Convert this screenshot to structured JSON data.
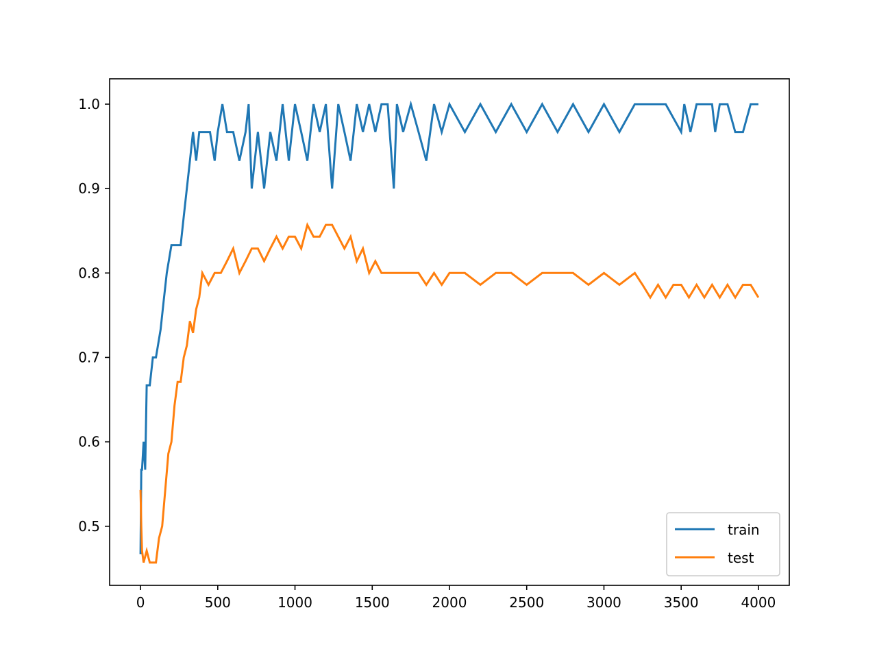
{
  "chart_data": {
    "type": "line",
    "title": "",
    "xlabel": "",
    "ylabel": "",
    "xlim": [
      -200,
      4200
    ],
    "ylim": [
      0.43,
      1.03
    ],
    "x_ticks": [
      0,
      500,
      1000,
      1500,
      2000,
      2500,
      3000,
      3500,
      4000
    ],
    "y_ticks": [
      0.5,
      0.6,
      0.7,
      0.8,
      0.9,
      1.0
    ],
    "x_tick_labels": [
      "0",
      "500",
      "1000",
      "1500",
      "2000",
      "2500",
      "3000",
      "3500",
      "4000"
    ],
    "y_tick_labels": [
      "0.5",
      "0.6",
      "0.7",
      "0.8",
      "0.9",
      "1.0"
    ],
    "grid": false,
    "legend_position": "lower-right",
    "series": [
      {
        "name": "train",
        "color": "#1f77b4",
        "x": [
          0,
          5,
          10,
          20,
          30,
          40,
          60,
          80,
          100,
          130,
          150,
          170,
          200,
          230,
          260,
          280,
          300,
          320,
          340,
          360,
          380,
          400,
          420,
          450,
          480,
          500,
          530,
          560,
          600,
          640,
          680,
          700,
          720,
          760,
          800,
          840,
          880,
          920,
          960,
          1000,
          1040,
          1080,
          1120,
          1160,
          1200,
          1240,
          1280,
          1320,
          1360,
          1400,
          1440,
          1480,
          1520,
          1560,
          1600,
          1640,
          1660,
          1700,
          1750,
          1800,
          1850,
          1900,
          1950,
          2000,
          2100,
          2200,
          2300,
          2400,
          2500,
          2600,
          2700,
          2800,
          2900,
          3000,
          3100,
          3200,
          3300,
          3400,
          3500,
          3520,
          3560,
          3600,
          3700,
          3720,
          3750,
          3800,
          3850,
          3900,
          3950,
          4000
        ],
        "values": [
          0.467,
          0.567,
          0.567,
          0.6,
          0.567,
          0.667,
          0.667,
          0.7,
          0.7,
          0.733,
          0.767,
          0.8,
          0.833,
          0.833,
          0.833,
          0.867,
          0.9,
          0.933,
          0.967,
          0.933,
          0.967,
          0.967,
          0.967,
          0.967,
          0.933,
          0.967,
          1.0,
          0.967,
          0.967,
          0.933,
          0.967,
          1.0,
          0.9,
          0.967,
          0.9,
          0.967,
          0.933,
          1.0,
          0.933,
          1.0,
          0.967,
          0.933,
          1.0,
          0.967,
          1.0,
          0.9,
          1.0,
          0.967,
          0.933,
          1.0,
          0.967,
          1.0,
          0.967,
          1.0,
          1.0,
          0.9,
          1.0,
          0.967,
          1.0,
          0.967,
          0.933,
          1.0,
          0.967,
          1.0,
          0.967,
          1.0,
          0.967,
          1.0,
          0.967,
          1.0,
          0.967,
          1.0,
          0.967,
          1.0,
          0.967,
          1.0,
          1.0,
          1.0,
          0.967,
          1.0,
          0.967,
          1.0,
          1.0,
          0.967,
          1.0,
          1.0,
          0.967,
          0.967,
          1.0,
          1.0
        ]
      },
      {
        "name": "test",
        "color": "#ff7f0e",
        "x": [
          0,
          5,
          10,
          20,
          40,
          60,
          80,
          100,
          120,
          140,
          160,
          180,
          200,
          220,
          240,
          260,
          280,
          300,
          320,
          340,
          360,
          380,
          400,
          440,
          480,
          520,
          560,
          600,
          640,
          680,
          720,
          760,
          800,
          840,
          880,
          920,
          960,
          1000,
          1040,
          1080,
          1120,
          1160,
          1200,
          1240,
          1280,
          1320,
          1360,
          1400,
          1440,
          1480,
          1520,
          1560,
          1600,
          1640,
          1700,
          1750,
          1800,
          1850,
          1900,
          1950,
          2000,
          2100,
          2200,
          2300,
          2400,
          2500,
          2600,
          2700,
          2800,
          2900,
          3000,
          3100,
          3200,
          3250,
          3300,
          3350,
          3400,
          3450,
          3500,
          3550,
          3600,
          3650,
          3700,
          3750,
          3800,
          3850,
          3900,
          3950,
          4000
        ],
        "values": [
          0.543,
          0.5,
          0.471,
          0.457,
          0.471,
          0.457,
          0.457,
          0.457,
          0.486,
          0.5,
          0.543,
          0.586,
          0.6,
          0.643,
          0.671,
          0.671,
          0.7,
          0.714,
          0.743,
          0.729,
          0.757,
          0.771,
          0.8,
          0.786,
          0.8,
          0.8,
          0.814,
          0.829,
          0.8,
          0.814,
          0.829,
          0.829,
          0.814,
          0.829,
          0.843,
          0.829,
          0.843,
          0.843,
          0.829,
          0.857,
          0.843,
          0.843,
          0.857,
          0.857,
          0.843,
          0.829,
          0.843,
          0.814,
          0.829,
          0.8,
          0.814,
          0.8,
          0.8,
          0.8,
          0.8,
          0.8,
          0.8,
          0.786,
          0.8,
          0.786,
          0.8,
          0.8,
          0.786,
          0.8,
          0.8,
          0.786,
          0.8,
          0.8,
          0.8,
          0.786,
          0.8,
          0.786,
          0.8,
          0.786,
          0.771,
          0.786,
          0.771,
          0.786,
          0.786,
          0.771,
          0.786,
          0.771,
          0.786,
          0.771,
          0.786,
          0.771,
          0.786,
          0.786,
          0.771
        ]
      }
    ]
  }
}
